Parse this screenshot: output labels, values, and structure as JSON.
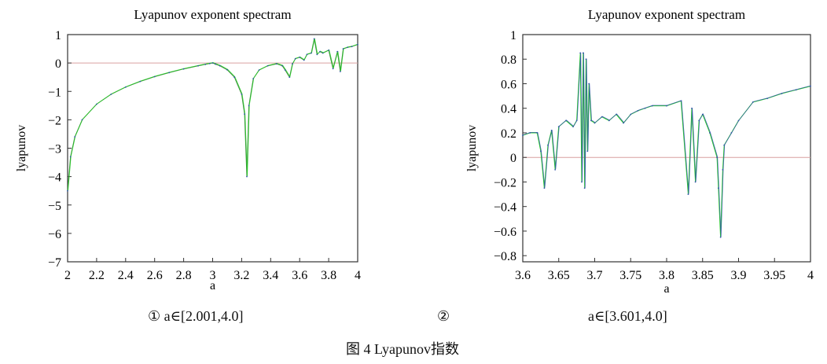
{
  "chart_data": [
    {
      "type": "line",
      "title": "Lyapunov exponent spectram",
      "xlabel": "a",
      "ylabel": "lyapunov",
      "xlim": [
        2,
        4
      ],
      "ylim": [
        -7,
        1
      ],
      "xticks": [
        "2",
        "2.2",
        "2.4",
        "2.6",
        "2.8",
        "3",
        "3.2",
        "3.4",
        "3.6",
        "3.8",
        "4"
      ],
      "yticks": [
        "1",
        "0",
        "−1",
        "−2",
        "−3",
        "−4",
        "−5",
        "−6",
        "−7"
      ],
      "grid": false,
      "reference_line": {
        "y": 0,
        "color": "#d9a0a0"
      },
      "series_colors": [
        "#3d8f3d",
        "#22cc22",
        "#3355aa"
      ],
      "series": [
        {
          "x": [
            2.0,
            2.02,
            2.05,
            2.1,
            2.2,
            2.3,
            2.4,
            2.5,
            2.6,
            2.7,
            2.8,
            2.9,
            2.95,
            2.98,
            3.0,
            3.02,
            3.05,
            3.1,
            3.15,
            3.2,
            3.22,
            3.236,
            3.25,
            3.28,
            3.32,
            3.38,
            3.44,
            3.48,
            3.5,
            3.53,
            3.55,
            3.57,
            3.6,
            3.63,
            3.65,
            3.68,
            3.7,
            3.72,
            3.74,
            3.76,
            3.8,
            3.83,
            3.86,
            3.88,
            3.9,
            3.93,
            3.96,
            4.0
          ],
          "y": [
            -4.5,
            -3.3,
            -2.6,
            -2.0,
            -1.45,
            -1.1,
            -0.85,
            -0.65,
            -0.48,
            -0.34,
            -0.21,
            -0.1,
            -0.05,
            -0.02,
            0.0,
            -0.04,
            -0.1,
            -0.24,
            -0.5,
            -1.1,
            -1.8,
            -4.0,
            -1.5,
            -0.55,
            -0.25,
            -0.1,
            -0.03,
            -0.1,
            -0.25,
            -0.5,
            -0.03,
            0.15,
            0.2,
            0.1,
            0.3,
            0.35,
            0.85,
            0.3,
            0.4,
            0.35,
            0.45,
            -0.2,
            0.4,
            -0.3,
            0.5,
            0.55,
            0.58,
            0.65
          ]
        }
      ]
    },
    {
      "type": "line",
      "title": "Lyapunov exponent spectram",
      "xlabel": "a",
      "ylabel": "lyapunov",
      "xlim": [
        3.6,
        4.0
      ],
      "ylim": [
        -0.85,
        1.0
      ],
      "xticks": [
        "3.6",
        "3.65",
        "3.7",
        "3.75",
        "3.8",
        "3.85",
        "3.9",
        "3.95",
        "4"
      ],
      "yticks": [
        "1",
        "0.8",
        "0.6",
        "0.4",
        "0.2",
        "0",
        "−0.2",
        "−0.4",
        "−0.6",
        "−0.8"
      ],
      "grid": false,
      "reference_line": {
        "y": 0.0,
        "color": "#d9a0a0"
      },
      "series_colors": [
        "#22cc22",
        "#3355aa"
      ],
      "series": [
        {
          "x": [
            3.6,
            3.61,
            3.62,
            3.625,
            3.63,
            3.635,
            3.64,
            3.645,
            3.65,
            3.66,
            3.67,
            3.675,
            3.68,
            3.682,
            3.684,
            3.686,
            3.688,
            3.69,
            3.692,
            3.695,
            3.7,
            3.71,
            3.72,
            3.73,
            3.74,
            3.75,
            3.76,
            3.77,
            3.78,
            3.8,
            3.82,
            3.83,
            3.835,
            3.84,
            3.845,
            3.85,
            3.86,
            3.87,
            3.872,
            3.875,
            3.878,
            3.88,
            3.89,
            3.9,
            3.92,
            3.94,
            3.96,
            3.98,
            4.0
          ],
          "y": [
            0.18,
            0.2,
            0.2,
            0.05,
            -0.25,
            0.1,
            0.22,
            -0.1,
            0.25,
            0.3,
            0.25,
            0.3,
            0.85,
            -0.2,
            0.85,
            -0.25,
            0.8,
            0.05,
            0.6,
            0.3,
            0.28,
            0.33,
            0.3,
            0.35,
            0.28,
            0.35,
            0.38,
            0.4,
            0.42,
            0.42,
            0.46,
            -0.3,
            0.4,
            -0.2,
            0.3,
            0.35,
            0.2,
            0.0,
            -0.25,
            -0.65,
            -0.1,
            0.1,
            0.2,
            0.3,
            0.45,
            0.48,
            0.52,
            0.55,
            0.58
          ]
        }
      ]
    }
  ],
  "captions": {
    "sub1": "① a∈[2.001,4.0]",
    "sub2_num": "②",
    "sub2": "a∈[3.601,4.0]",
    "figure": "图 4 Lyapunov指数"
  }
}
